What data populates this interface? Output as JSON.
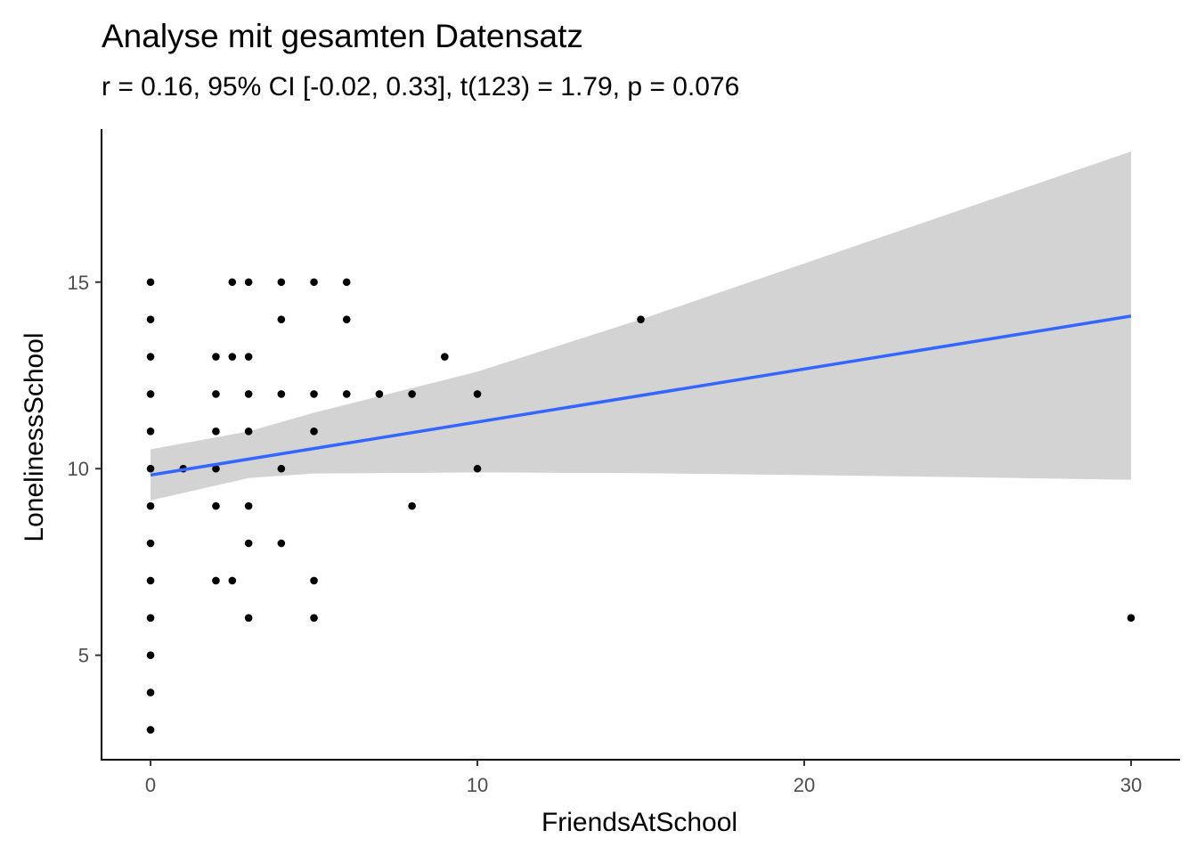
{
  "chart_data": {
    "type": "scatter",
    "title": "Analyse mit gesamten Datensatz",
    "subtitle": "r = 0.16, 95% CI [-0.02, 0.33], t(123) = 1.79, p = 0.076",
    "xlabel": "FriendsAtSchool",
    "ylabel": "LonelinessSchool",
    "xlim": [
      -1.5,
      31.5
    ],
    "ylim": [
      2.2,
      19.1
    ],
    "x_ticks": [
      0,
      10,
      20,
      30
    ],
    "y_ticks": [
      5,
      10,
      15
    ],
    "grid": false,
    "legend": "none",
    "points": [
      [
        0,
        3
      ],
      [
        0,
        4
      ],
      [
        0,
        5
      ],
      [
        0,
        6
      ],
      [
        0,
        7
      ],
      [
        0,
        8
      ],
      [
        0,
        9
      ],
      [
        0,
        10
      ],
      [
        0,
        11
      ],
      [
        0,
        12
      ],
      [
        0,
        13
      ],
      [
        0,
        14
      ],
      [
        0,
        15
      ],
      [
        1,
        10
      ],
      [
        2,
        7
      ],
      [
        2,
        9
      ],
      [
        2,
        10
      ],
      [
        2,
        11
      ],
      [
        2,
        12
      ],
      [
        2,
        13
      ],
      [
        2.5,
        7
      ],
      [
        2.5,
        13
      ],
      [
        2.5,
        15
      ],
      [
        3,
        6
      ],
      [
        3,
        8
      ],
      [
        3,
        9
      ],
      [
        3,
        11
      ],
      [
        3,
        12
      ],
      [
        3,
        13
      ],
      [
        3,
        15
      ],
      [
        4,
        8
      ],
      [
        4,
        10
      ],
      [
        4,
        12
      ],
      [
        4,
        14
      ],
      [
        4,
        15
      ],
      [
        5,
        6
      ],
      [
        5,
        7
      ],
      [
        5,
        11
      ],
      [
        5,
        12
      ],
      [
        5,
        15
      ],
      [
        6,
        12
      ],
      [
        6,
        14
      ],
      [
        6,
        15
      ],
      [
        7,
        12
      ],
      [
        8,
        9
      ],
      [
        8,
        12
      ],
      [
        9,
        13
      ],
      [
        10,
        10
      ],
      [
        10,
        12
      ],
      [
        15,
        14
      ],
      [
        30,
        6
      ]
    ],
    "regression": {
      "intercept": 9.83,
      "slope": 0.142,
      "color": "#3366ff",
      "ci_band": [
        {
          "x": 0,
          "lower": 9.15,
          "upper": 10.52
        },
        {
          "x": 3,
          "lower": 9.75,
          "upper": 11.0
        },
        {
          "x": 5,
          "lower": 9.87,
          "upper": 11.5
        },
        {
          "x": 10,
          "lower": 9.9,
          "upper": 12.6
        },
        {
          "x": 15,
          "lower": 9.88,
          "upper": 14.0
        },
        {
          "x": 20,
          "lower": 9.83,
          "upper": 15.5
        },
        {
          "x": 25,
          "lower": 9.77,
          "upper": 17.0
        },
        {
          "x": 30,
          "lower": 9.7,
          "upper": 18.5
        }
      ],
      "band_color": "#d3d3d3"
    }
  }
}
